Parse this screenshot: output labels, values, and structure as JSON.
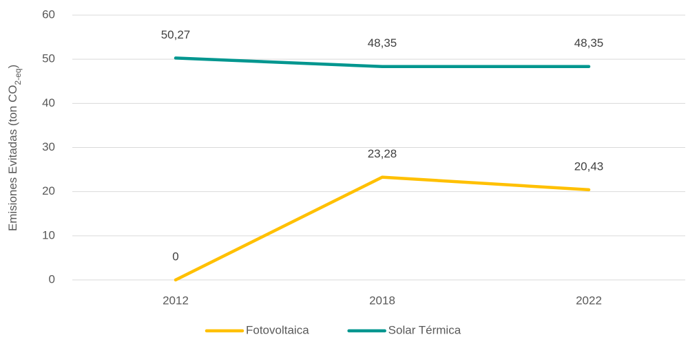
{
  "chart_data": {
    "type": "line",
    "y_label": [
      "Emisiones Evitadas (ton CO",
      "2-eq",
      ")"
    ],
    "categories": [
      "2012",
      "2018",
      "2022"
    ],
    "series": [
      {
        "name": "Fotovoltaica",
        "color": "#FFC000",
        "values": [
          0,
          23.28,
          20.43
        ],
        "value_labels": [
          "0",
          "23,28",
          "20,43"
        ]
      },
      {
        "name": "Solar Térmica",
        "color": "#00968F",
        "values": [
          50.27,
          48.35,
          48.35
        ],
        "value_labels": [
          "50,27",
          "48,35",
          "48,35"
        ]
      }
    ],
    "ylim": [
      0,
      60
    ],
    "yticks": [
      0,
      10,
      20,
      30,
      40,
      50,
      60
    ],
    "grid": true,
    "legend": "bottom"
  }
}
